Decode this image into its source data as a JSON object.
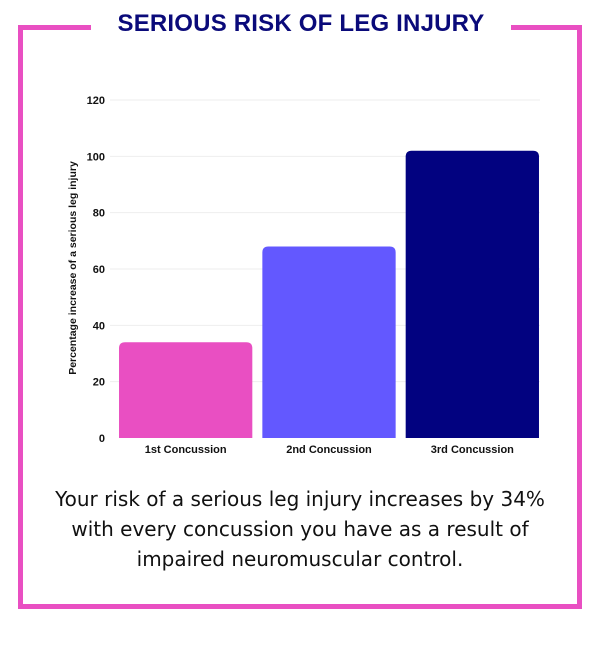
{
  "title": "SERIOUS RISK OF LEG INJURY",
  "description": "Your risk of a serious leg injury increases by 34% with every concussion you have as a result of impaired neuromuscular control.",
  "colors": {
    "frame": "#e94fc2",
    "title": "#0a0a7a"
  },
  "chart_data": {
    "type": "bar",
    "title": "",
    "xlabel": "",
    "ylabel": "Percentage increase of a serious leg injury",
    "categories": [
      "1st Concussion",
      "2nd Concussion",
      "3rd Concussion"
    ],
    "values": [
      34,
      68,
      102
    ],
    "colors": [
      "#e94fc2",
      "#6358ff",
      "#020280"
    ],
    "ylim": [
      0,
      120
    ],
    "yticks": [
      0,
      20,
      40,
      60,
      80,
      100,
      120
    ],
    "grid": true,
    "legend": "none"
  }
}
